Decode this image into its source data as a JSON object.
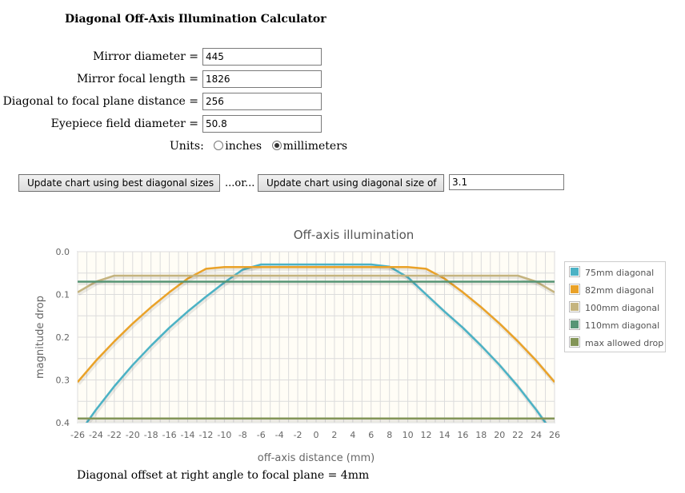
{
  "page": {
    "title": "Diagonal Off-Axis Illumination Calculator",
    "offset_note": "Diagonal offset at right angle to focal plane = 4mm"
  },
  "form": {
    "mirror_diameter": {
      "label": "Mirror diameter =",
      "value": "445"
    },
    "mirror_focal_length": {
      "label": "Mirror focal length =",
      "value": "1826"
    },
    "diagonal_distance": {
      "label": "Diagonal to focal plane distance =",
      "value": "256"
    },
    "eyepiece_field": {
      "label": "Eyepiece field diameter =",
      "value": "50.8"
    },
    "units": {
      "label": "Units:",
      "options": [
        "inches",
        "millimeters"
      ],
      "selected": "millimeters"
    }
  },
  "actions": {
    "best_button": "Update chart using best diagonal sizes",
    "or_text": "...or...",
    "size_button": "Update chart using diagonal size of",
    "diagonal_size_value": "3.1"
  },
  "chart_data": {
    "type": "line",
    "title": "Off-axis illumination",
    "xlabel": "off-axis distance (mm)",
    "ylabel": "magnitude drop",
    "xlim": [
      -26,
      26
    ],
    "ylim": [
      0,
      0.4
    ],
    "y_inverted": true,
    "grid": true,
    "legend_position": "right",
    "x_ticks": [
      "-26",
      "-24",
      "-22",
      "-20",
      "-18",
      "-16",
      "-14",
      "-12",
      "-10",
      "-8",
      "-6",
      "-4",
      "-2",
      "0",
      "2",
      "4",
      "6",
      "8",
      "10",
      "12",
      "14",
      "16",
      "18",
      "20",
      "22",
      "24",
      "26"
    ],
    "y_ticks": [
      "0.0",
      "0.1",
      "0.2",
      "0.3",
      "0.4"
    ],
    "series": [
      {
        "name": "75mm diagonal",
        "color": "#4bb2c5",
        "x": [
          -26,
          -24,
          -22,
          -20,
          -18,
          -16,
          -14,
          -12,
          -10,
          -8,
          -6,
          -4,
          -2,
          0,
          2,
          4,
          6,
          8,
          10,
          12,
          14,
          16,
          18,
          20,
          22,
          24,
          26
        ],
        "y": [
          0.43,
          0.37,
          0.315,
          0.265,
          0.22,
          0.178,
          0.14,
          0.105,
          0.072,
          0.042,
          0.03,
          0.03,
          0.03,
          0.03,
          0.03,
          0.03,
          0.03,
          0.035,
          0.06,
          0.1,
          0.14,
          0.178,
          0.22,
          0.265,
          0.315,
          0.37,
          0.43
        ]
      },
      {
        "name": "82mm diagonal",
        "color": "#eaa228",
        "x": [
          -26,
          -24,
          -22,
          -20,
          -18,
          -16,
          -14,
          -12,
          -10,
          -8,
          -6,
          -4,
          -2,
          0,
          2,
          4,
          6,
          8,
          10,
          12,
          14,
          16,
          18,
          20,
          22,
          24,
          26
        ],
        "y": [
          0.305,
          0.255,
          0.21,
          0.168,
          0.13,
          0.095,
          0.063,
          0.04,
          0.036,
          0.036,
          0.036,
          0.036,
          0.036,
          0.036,
          0.036,
          0.036,
          0.036,
          0.036,
          0.036,
          0.04,
          0.063,
          0.095,
          0.13,
          0.168,
          0.21,
          0.255,
          0.305
        ]
      },
      {
        "name": "100mm diagonal",
        "color": "#c5b47f",
        "x": [
          -26,
          -24,
          -22,
          -20,
          -18,
          -16,
          -14,
          -12,
          -10,
          -8,
          -6,
          -4,
          -2,
          0,
          2,
          4,
          6,
          8,
          10,
          12,
          14,
          16,
          18,
          20,
          22,
          24,
          26
        ],
        "y": [
          0.095,
          0.07,
          0.056,
          0.056,
          0.056,
          0.056,
          0.056,
          0.056,
          0.056,
          0.056,
          0.056,
          0.056,
          0.056,
          0.056,
          0.056,
          0.056,
          0.056,
          0.056,
          0.056,
          0.056,
          0.056,
          0.056,
          0.056,
          0.056,
          0.056,
          0.07,
          0.095
        ]
      },
      {
        "name": "110mm diagonal",
        "color": "#579575",
        "x": [
          -26,
          26
        ],
        "y": [
          0.07,
          0.07
        ]
      },
      {
        "name": "max allowed drop",
        "color": "#839557",
        "x": [
          -26,
          26
        ],
        "y": [
          0.39,
          0.39
        ]
      }
    ]
  }
}
